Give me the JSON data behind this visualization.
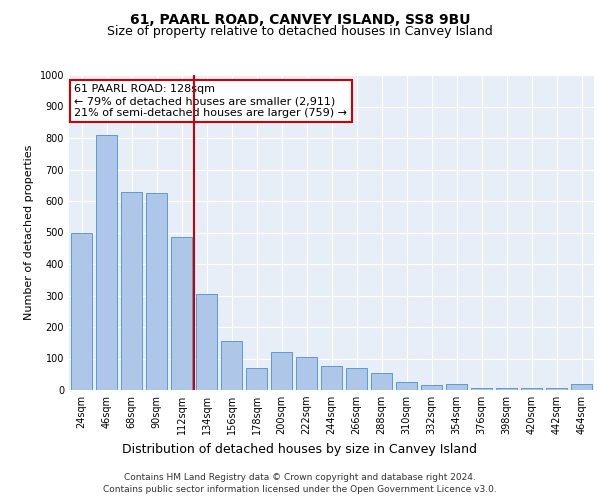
{
  "title_line1": "61, PAARL ROAD, CANVEY ISLAND, SS8 9BU",
  "title_line2": "Size of property relative to detached houses in Canvey Island",
  "xlabel": "Distribution of detached houses by size in Canvey Island",
  "ylabel": "Number of detached properties",
  "footer_line1": "Contains HM Land Registry data © Crown copyright and database right 2024.",
  "footer_line2": "Contains public sector information licensed under the Open Government Licence v3.0.",
  "annotation_line1": "61 PAARL ROAD: 128sqm",
  "annotation_line2": "← 79% of detached houses are smaller (2,911)",
  "annotation_line3": "21% of semi-detached houses are larger (759) →",
  "bar_categories": [
    "24sqm",
    "46sqm",
    "68sqm",
    "90sqm",
    "112sqm",
    "134sqm",
    "156sqm",
    "178sqm",
    "200sqm",
    "222sqm",
    "244sqm",
    "266sqm",
    "288sqm",
    "310sqm",
    "332sqm",
    "354sqm",
    "376sqm",
    "398sqm",
    "420sqm",
    "442sqm",
    "464sqm"
  ],
  "bar_values": [
    500,
    810,
    630,
    625,
    485,
    305,
    155,
    70,
    120,
    105,
    75,
    70,
    55,
    25,
    15,
    18,
    5,
    5,
    5,
    5,
    18
  ],
  "bar_color": "#aec6e8",
  "bar_edge_color": "#5b9bd5",
  "vline_color": "#cc0000",
  "annotation_box_color": "#cc0000",
  "background_color": "#e8eef7",
  "ylim": [
    0,
    1000
  ],
  "yticks": [
    0,
    100,
    200,
    300,
    400,
    500,
    600,
    700,
    800,
    900,
    1000
  ],
  "title1_fontsize": 10,
  "title2_fontsize": 9,
  "footer_fontsize": 6.5,
  "ylabel_fontsize": 8,
  "xlabel_fontsize": 9,
  "tick_fontsize": 7,
  "ann_fontsize": 8
}
